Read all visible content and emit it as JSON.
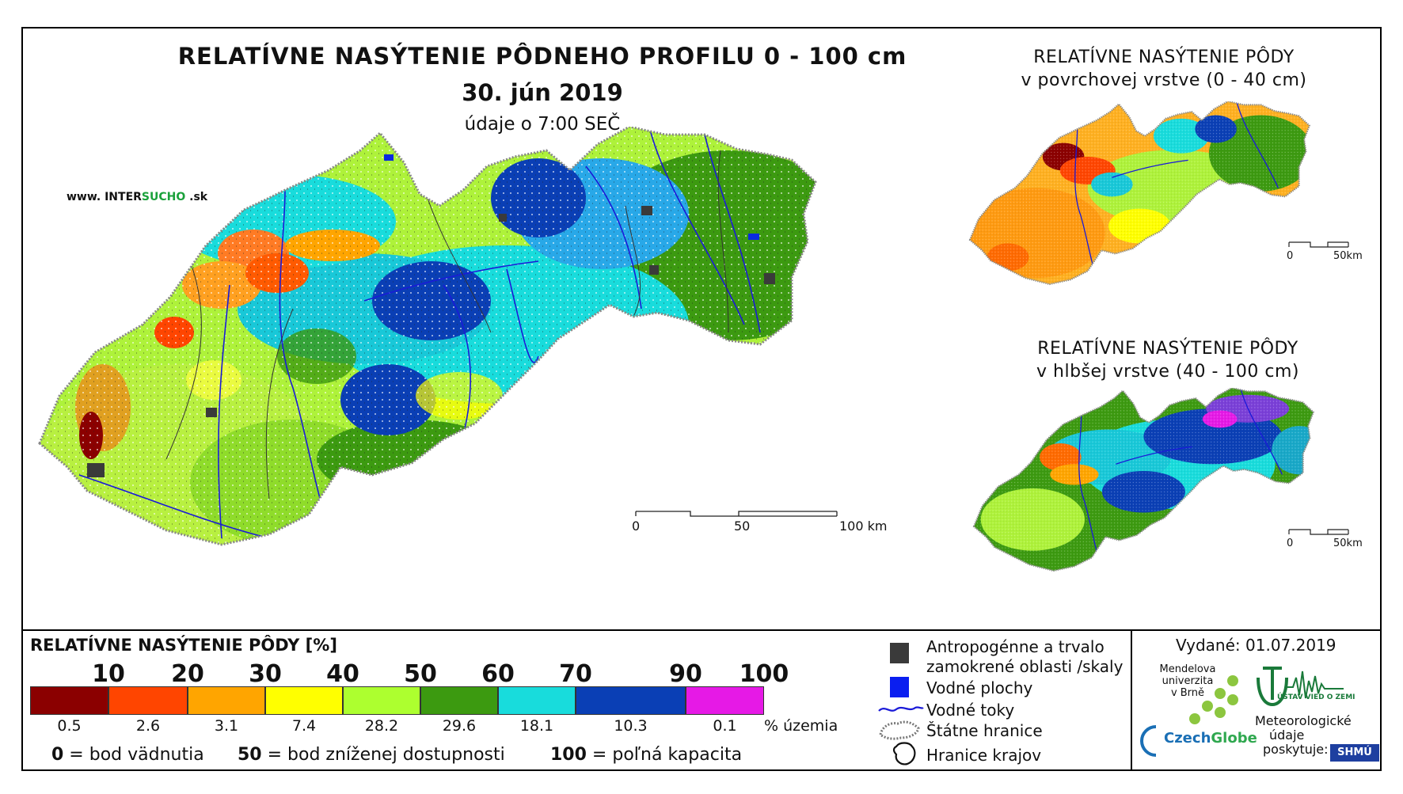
{
  "title": {
    "main": "RELATÍVNE NASÝTENIE PÔDNEHO PROFILU 0 - 100 cm",
    "date": "30. jún 2019",
    "time": "údaje o 7:00 SEČ"
  },
  "website": {
    "prefix": "www. INTER",
    "highlight": "SUCHO",
    "suffix": " .sk"
  },
  "inset_top": {
    "title_line1": "RELATÍVNE NASÝTENIE PÔDY",
    "title_line2": "v povrchovej vrstve (0 - 40 cm)",
    "scale_zero": "0",
    "scale_end": "50km"
  },
  "inset_bottom": {
    "title_line1": "RELATÍVNE NASÝTENIE PÔDY",
    "title_line2": "v hlbšej vrstve (40 - 100 cm)",
    "scale_zero": "0",
    "scale_end": "50km"
  },
  "main_scale": {
    "zero": "0",
    "mid": "50",
    "end": "100 km"
  },
  "legend": {
    "title": "RELATÍVNE NASÝTENIE PÔDY [%]",
    "ticks": [
      "10",
      "20",
      "30",
      "40",
      "50",
      "60",
      "70",
      "90",
      "100"
    ],
    "colors": [
      "#8b0000",
      "#ff4500",
      "#ffa500",
      "#ffff00",
      "#adff2f",
      "#3c9a10",
      "#18dcdc",
      "#0a3fb5",
      "#e619e6"
    ],
    "percentages": [
      "0.5",
      "2.6",
      "3.1",
      "7.4",
      "28.2",
      "29.6",
      "18.1",
      "10.3",
      "0.1"
    ],
    "pct_unit": "% územia",
    "def0_num": "0",
    "def0_text": " = bod vädnutia",
    "def50_num": "50",
    "def50_text": " = bod zníženej dostupnosti",
    "def100_num": "100",
    "def100_text": " = poľná kapacita"
  },
  "symbols": {
    "anthropogenic_line1": "Antropogénne a trvalo",
    "anthropogenic_line2": "zamokrené oblasti /skaly",
    "water_surfaces": "Vodné plochy",
    "water_streams": "Vodné toky",
    "state_border": "Štátne hranice",
    "region_border": "Hranice krajov"
  },
  "issued": "Vydané: 01.07.2019",
  "logos": {
    "mendel_line1": "Mendelova",
    "mendel_line2": "univerzita",
    "mendel_line3": "v Brně",
    "czechglobe_a": "Czech",
    "czechglobe_b": "Globe",
    "ustav_text": "ÚSTAV VIED O ZEMI",
    "meteo_line1": "Meteorologické",
    "meteo_line2": "údaje",
    "meteo_line3": "poskytuje:",
    "shmu": "SHMÚ"
  }
}
